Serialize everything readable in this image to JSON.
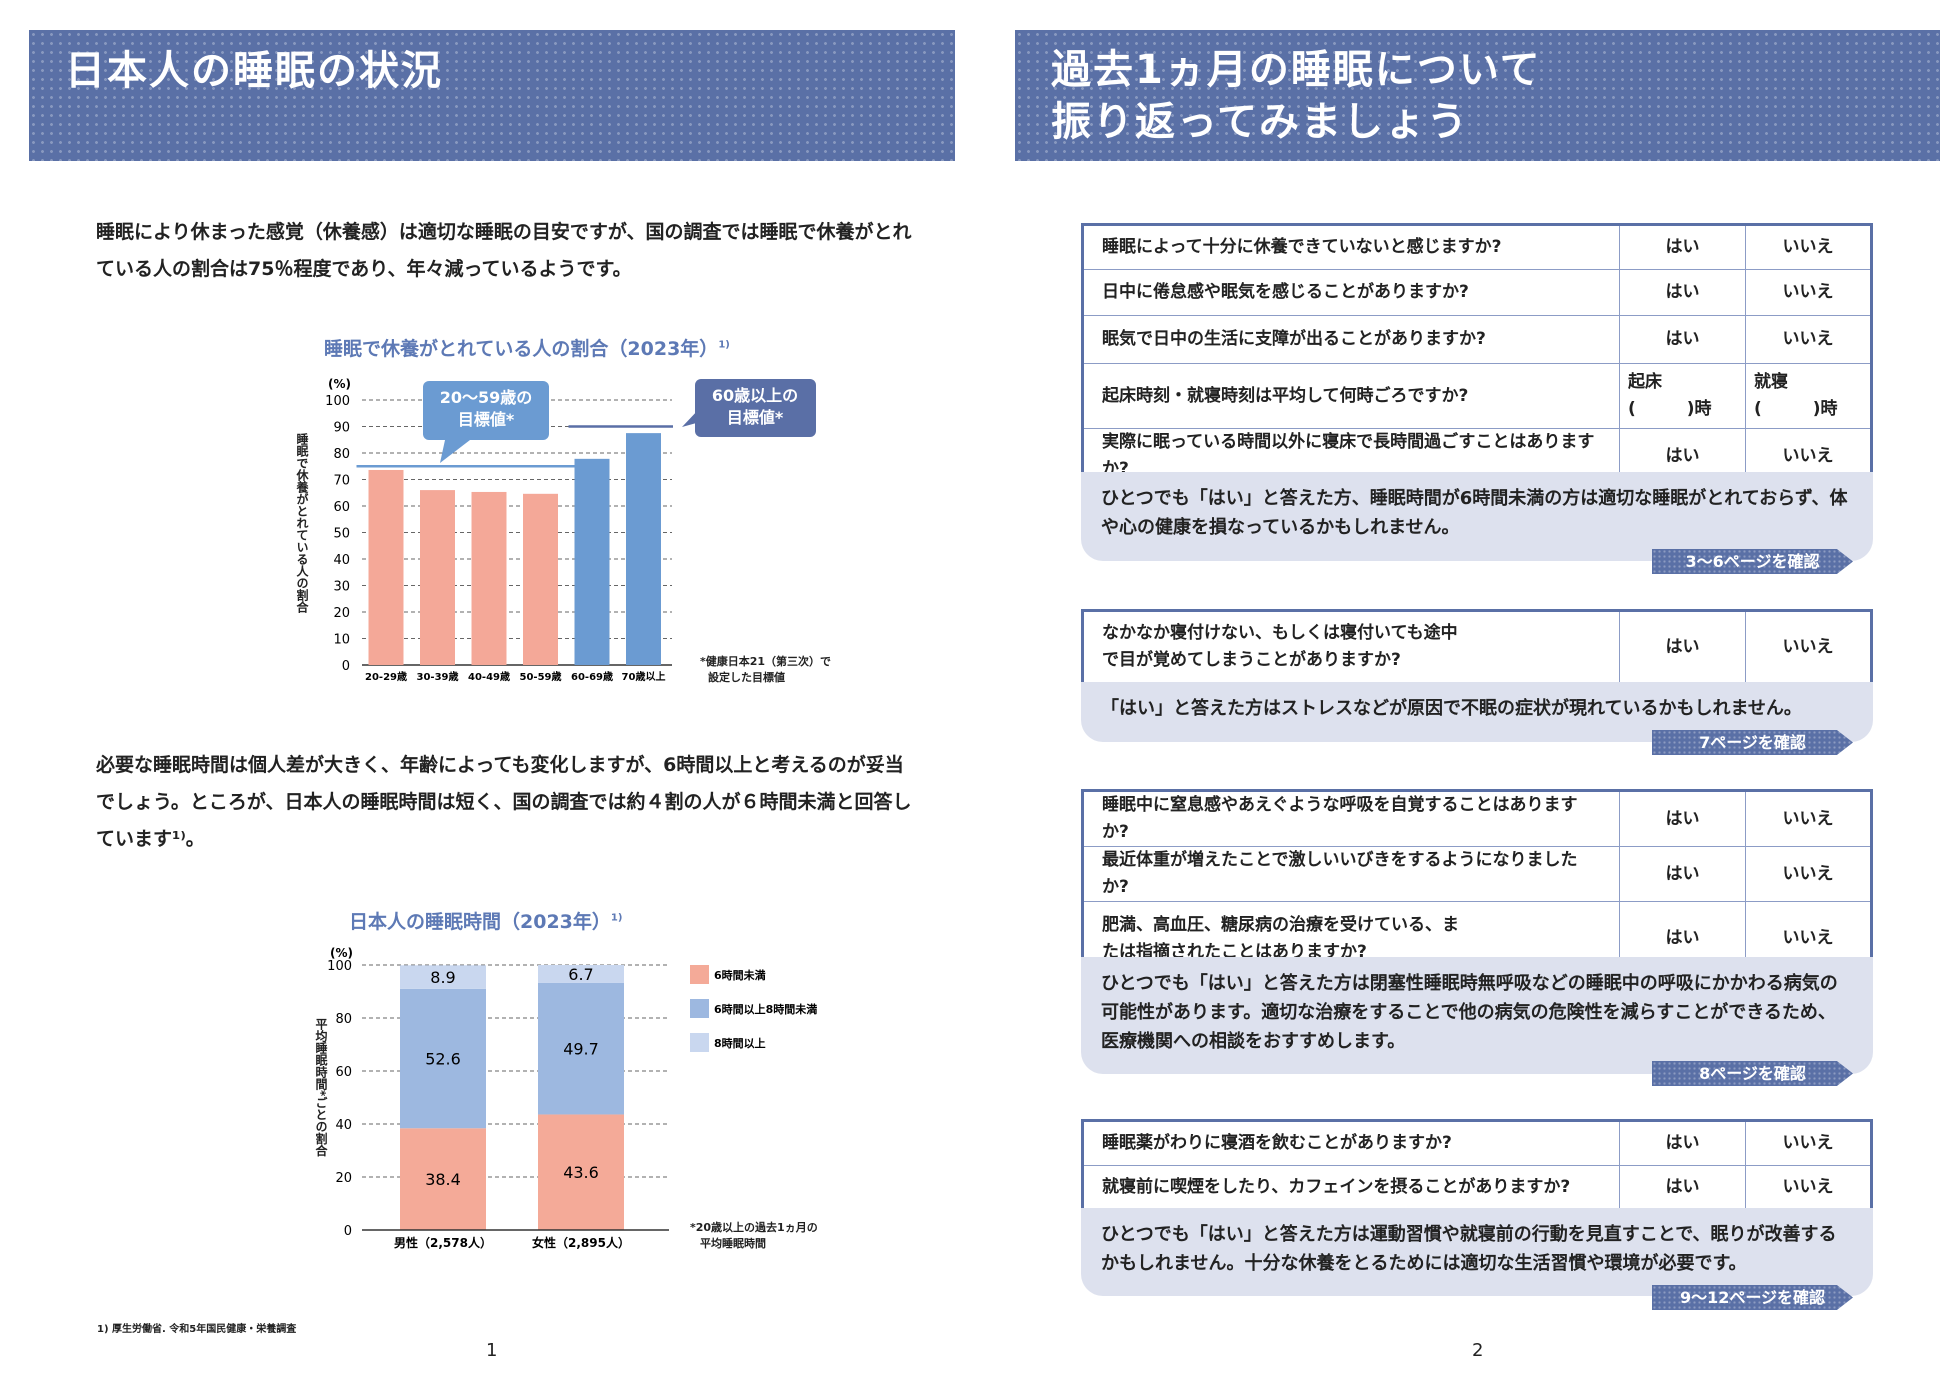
{
  "left": {
    "title": "日本人の睡眠の状況",
    "para1": "睡眠により休まった感覚（休養感）は適切な睡眠の目安ですが、国の調査では睡眠で休養がとれている人の割合は75％程度であり、年々減っているようです。",
    "para2": "必要な睡眠時間は個人差が大きく、年齢によっても変化しますが、6時間以上と考えるのが妥当でしょう。ところが、日本人の睡眠時間は短く、国の調査では約４割の人が６時間未満と回答しています¹⁾。",
    "source": "1) 厚生労働省. 令和5年国民健康・栄養調査",
    "page": "1"
  },
  "chart_data": [
    {
      "type": "bar",
      "title": "睡眠で休養がとれている人の割合（2023年）",
      "title_sup": "1)",
      "ylabel": "睡眠で休養がとれている人の割合",
      "yunit": "(%)",
      "ylim": [
        0,
        100
      ],
      "yticks": [
        0,
        10,
        20,
        30,
        40,
        50,
        60,
        70,
        80,
        90,
        100
      ],
      "grid": true,
      "categories": [
        "20-29歳",
        "30-39歳",
        "40-49歳",
        "50-59歳",
        "60-69歳",
        "70歳以上"
      ],
      "values": [
        73.6,
        66.0,
        65.3,
        64.6,
        77.8,
        87.5
      ],
      "colors": [
        "#f4a898",
        "#f4a898",
        "#f4a898",
        "#f4a898",
        "#6b9bd2",
        "#6b9bd2"
      ],
      "targets": [
        {
          "label": "20～59歳の目標値*",
          "value": 75,
          "from": "20-29歳",
          "to": "50-59歳",
          "color": "#6b9bd2"
        },
        {
          "label": "60歳以上の目標値*",
          "value": 90,
          "from": "60-69歳",
          "to": "70歳以上",
          "color": "#5a6fa6"
        }
      ],
      "target_labels": [
        [
          "20～59歳の",
          "目標値*"
        ],
        [
          "60歳以上の",
          "目標値*"
        ]
      ],
      "footnote": [
        "*健康日本21（第三次）で",
        "設定した目標値"
      ]
    },
    {
      "type": "bar",
      "stacked": true,
      "title": "日本人の睡眠時間（2023年）",
      "title_sup": "1)",
      "ylabel": "平均睡眠時間*ごとの割合",
      "yunit": "(%)",
      "ylim": [
        0,
        100
      ],
      "yticks": [
        0,
        20,
        40,
        60,
        80,
        100
      ],
      "grid": true,
      "legend": "right",
      "categories": [
        "男性（2,578人）",
        "女性（2,895人）"
      ],
      "series": [
        {
          "name": "6時間未満",
          "values": [
            38.4,
            43.6
          ],
          "color": "#f4aa98"
        },
        {
          "name": "6時間以上8時間未満",
          "values": [
            52.6,
            49.7
          ],
          "color": "#9db8e0"
        },
        {
          "name": "8時間以上",
          "values": [
            8.9,
            6.7
          ],
          "color": "#c9d7ef"
        }
      ],
      "footnote": [
        "*20歳以上の過去1ヵ月の",
        "平均睡眠時間"
      ]
    }
  ],
  "right": {
    "title_lines": [
      "過去1ヵ月の睡眠について",
      "振り返ってみましょう"
    ],
    "yes": "はい",
    "no": "いいえ",
    "sections": [
      {
        "questions": [
          "睡眠によって十分に休養できていないと感じますか?",
          "日中に倦怠感や眠気を感じることがありますか?",
          "眠気で日中の生活に支障が出ることがありますか?"
        ],
        "time_question": {
          "q": "起床時刻・就寝時刻は平均して何時ごろですか?",
          "wake": "起床",
          "bed": "就寝",
          "unit": "(　　　)時"
        },
        "questions2": [
          "実際に眠っている時間以外に寝床で長時間過ごすことはありますか?"
        ],
        "note": "ひとつでも「はい」と答えた方、睡眠時間が6時間未満の方は適切な睡眠がとれておらず、体や心の健康を損なっているかもしれません。",
        "link": "3～6ページを確認"
      },
      {
        "questions": [
          "なかなか寝付けない、もしくは寝付いても途中で目が覚めてしまうことがありますか?"
        ],
        "note": "「はい」と答えた方はストレスなどが原因で不眠の症状が現れているかもしれません。",
        "link": "7ページを確認"
      },
      {
        "questions": [
          "睡眠中に窒息感やあえぐような呼吸を自覚することはありますか?",
          "最近体重が増えたことで激しいいびきをするようになりましたか?",
          "肥満、高血圧、糖尿病の治療を受けている、または指摘されたことはありますか?"
        ],
        "note": "ひとつでも「はい」と答えた方は閉塞性睡眠時無呼吸などの睡眠中の呼吸にかかわる病気の可能性があります。適切な治療をすることで他の病気の危険性を減らすことができるため、医療機関への相談をおすすめします。",
        "link": "8ページを確認"
      },
      {
        "questions": [
          "睡眠薬がわりに寝酒を飲むことがありますか?",
          "就寝前に喫煙をしたり、カフェインを摂ることがありますか?"
        ],
        "note": "ひとつでも「はい」と答えた方は運動習慣や就寝前の行動を見直すことで、眠りが改善するかもしれません。十分な休養をとるためには適切な生活習慣や環境が必要です。",
        "link": "9～12ページを確認"
      }
    ],
    "page": "2"
  },
  "colors": {
    "banner": "#5a70a6",
    "title": "#5d79b5",
    "note_bg": "#dde1ee"
  }
}
